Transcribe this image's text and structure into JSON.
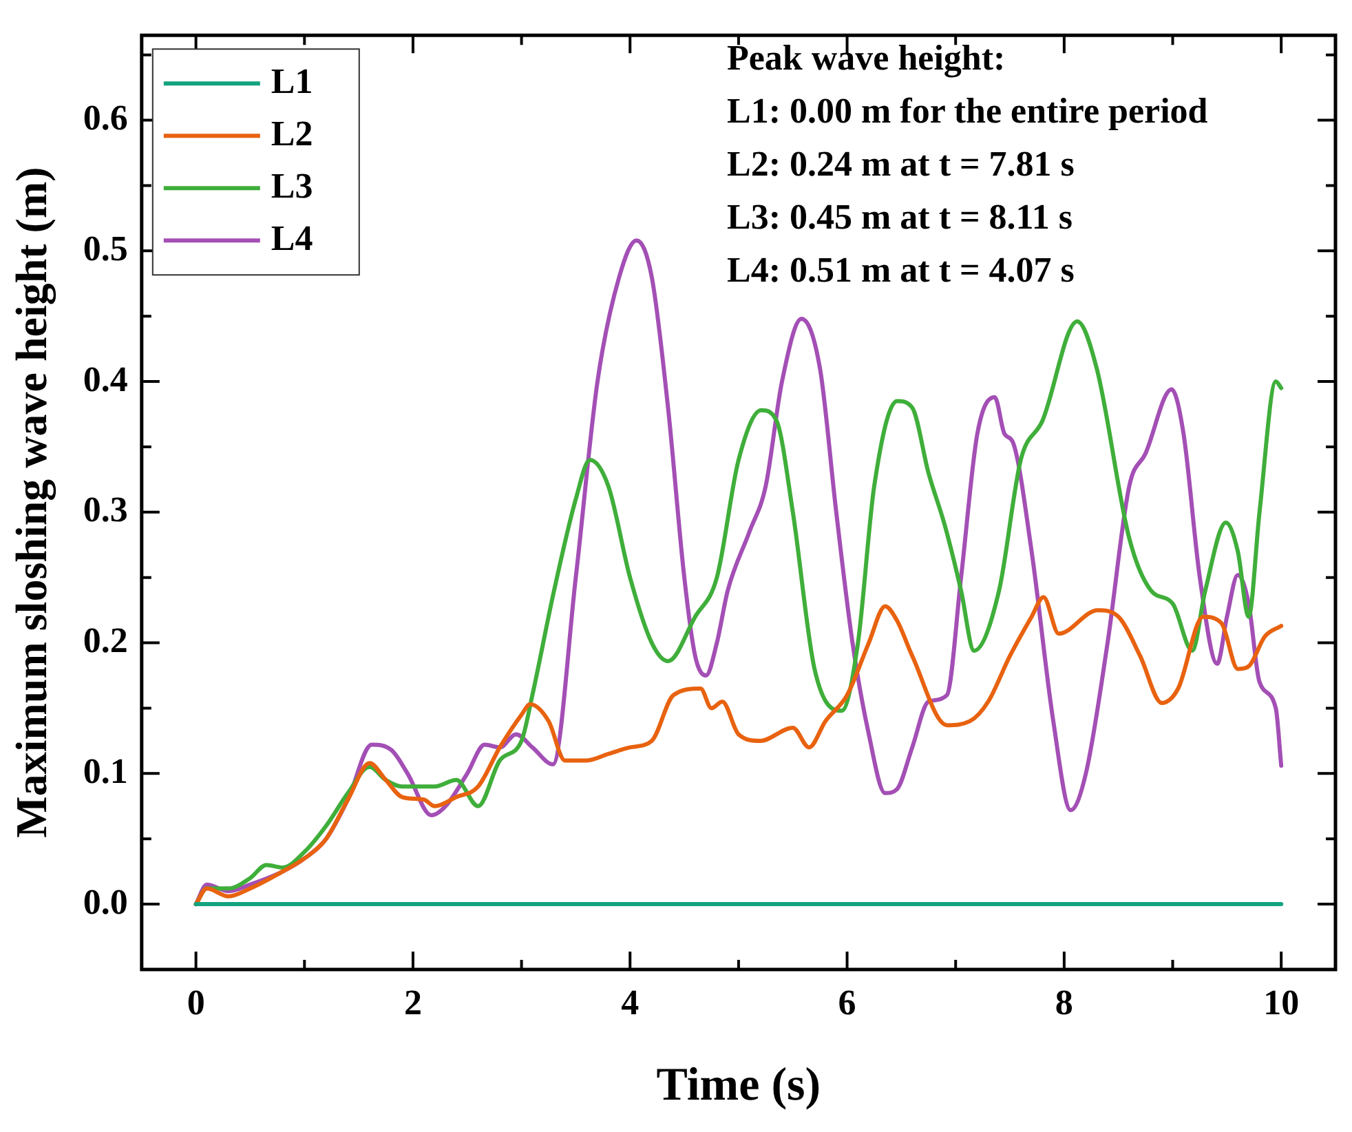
{
  "chart_data": {
    "type": "line",
    "xlabel": "Time (s)",
    "ylabel": "Maximum sloshing wave height (m)",
    "xlim": [
      -0.5,
      10.5
    ],
    "ylim": [
      -0.05,
      0.665
    ],
    "xticks": [
      0,
      {
        "value": 1,
        "label": null
      },
      2,
      {
        "value": 3,
        "label": null
      },
      4,
      {
        "value": 5,
        "label": null
      },
      6,
      {
        "value": 7,
        "label": null
      },
      8,
      {
        "value": 9,
        "label": null
      },
      10
    ],
    "yticks": [
      {
        "value": 0,
        "label": "0.0"
      },
      {
        "value": 0.05,
        "label": null
      },
      {
        "value": 0.1,
        "label": "0.1"
      },
      {
        "value": 0.15,
        "label": null
      },
      {
        "value": 0.2,
        "label": "0.2"
      },
      {
        "value": 0.25,
        "label": null
      },
      {
        "value": 0.3,
        "label": "0.3"
      },
      {
        "value": 0.35,
        "label": null
      },
      {
        "value": 0.4,
        "label": "0.4"
      },
      {
        "value": 0.45,
        "label": null
      },
      {
        "value": 0.5,
        "label": "0.5"
      },
      {
        "value": 0.55,
        "label": null
      },
      {
        "value": 0.6,
        "label": "0.6"
      },
      {
        "value": 0.65,
        "label": null
      }
    ],
    "grid": false,
    "legend": "top left",
    "marker": "none",
    "line_style": "solid",
    "annotations": [
      "Peak wave height:",
      "L1: 0.00 m for the entire period",
      "L2: 0.24 m at t = 7.81 s",
      "L3: 0.45 m at t = 8.11 s",
      "L4: 0.51 m at t = 4.07 s"
    ],
    "series": [
      {
        "name": "L1",
        "color": "#14a37f",
        "x": [
          0,
          10
        ],
        "values": [
          0,
          0
        ]
      },
      {
        "name": "L2",
        "color": "#e8620f",
        "x": [
          0,
          0.1,
          0.3,
          0.5,
          0.8,
          1.0,
          1.2,
          1.4,
          1.6,
          1.75,
          1.9,
          2.1,
          2.2,
          2.4,
          2.6,
          2.8,
          3.0,
          3.08,
          3.25,
          3.4,
          3.6,
          3.8,
          4.0,
          4.2,
          4.4,
          4.65,
          4.75,
          4.85,
          5.0,
          5.2,
          5.5,
          5.65,
          5.8,
          6.0,
          6.2,
          6.35,
          6.46,
          6.6,
          6.92,
          7.13,
          7.3,
          7.5,
          7.7,
          7.81,
          7.95,
          8.31,
          8.5,
          8.7,
          8.9,
          9.05,
          9.28,
          9.45,
          9.6,
          9.7,
          9.85,
          10.0
        ],
        "values": [
          0,
          0.012,
          0.006,
          0.012,
          0.025,
          0.035,
          0.05,
          0.08,
          0.108,
          0.095,
          0.082,
          0.08,
          0.075,
          0.082,
          0.09,
          0.12,
          0.145,
          0.153,
          0.14,
          0.11,
          0.11,
          0.115,
          0.12,
          0.125,
          0.16,
          0.165,
          0.15,
          0.155,
          0.13,
          0.125,
          0.135,
          0.12,
          0.14,
          0.16,
          0.2,
          0.228,
          0.217,
          0.19,
          0.137,
          0.14,
          0.155,
          0.19,
          0.22,
          0.235,
          0.207,
          0.225,
          0.22,
          0.19,
          0.154,
          0.165,
          0.22,
          0.215,
          0.18,
          0.182,
          0.205,
          0.213
        ]
      },
      {
        "name": "L3",
        "color": "#3fae3a",
        "x": [
          0,
          0.1,
          0.3,
          0.5,
          0.65,
          0.8,
          1.0,
          1.2,
          1.4,
          1.6,
          1.75,
          1.9,
          2.2,
          2.4,
          2.6,
          2.8,
          3.0,
          3.1,
          3.3,
          3.5,
          3.63,
          3.8,
          4.0,
          4.2,
          4.35,
          4.6,
          4.8,
          5.0,
          5.21,
          5.35,
          5.5,
          5.7,
          5.95,
          6.1,
          6.25,
          6.46,
          6.6,
          6.75,
          6.9,
          7.05,
          7.17,
          7.4,
          7.6,
          7.8,
          8.12,
          8.3,
          8.6,
          8.8,
          9.0,
          9.18,
          9.3,
          9.49,
          9.6,
          9.7,
          9.8,
          9.95,
          10.0
        ],
        "values": [
          0,
          0.012,
          0.012,
          0.02,
          0.03,
          0.028,
          0.04,
          0.06,
          0.085,
          0.105,
          0.095,
          0.09,
          0.09,
          0.095,
          0.075,
          0.11,
          0.125,
          0.16,
          0.24,
          0.31,
          0.34,
          0.32,
          0.25,
          0.2,
          0.186,
          0.22,
          0.25,
          0.34,
          0.378,
          0.37,
          0.3,
          0.18,
          0.148,
          0.2,
          0.32,
          0.385,
          0.38,
          0.33,
          0.29,
          0.24,
          0.194,
          0.24,
          0.34,
          0.37,
          0.446,
          0.41,
          0.28,
          0.24,
          0.23,
          0.194,
          0.24,
          0.292,
          0.27,
          0.22,
          0.3,
          0.4,
          0.395
        ]
      },
      {
        "name": "L4",
        "color": "#a34fb5",
        "x": [
          0,
          0.1,
          0.3,
          0.5,
          0.8,
          1.0,
          1.2,
          1.4,
          1.62,
          1.8,
          1.95,
          2.17,
          2.3,
          2.5,
          2.66,
          2.8,
          2.95,
          3.1,
          3.29,
          3.5,
          3.7,
          3.9,
          4.06,
          4.2,
          4.35,
          4.5,
          4.6,
          4.7,
          4.8,
          4.9,
          5.1,
          5.25,
          5.4,
          5.58,
          5.75,
          5.9,
          6.05,
          6.2,
          6.35,
          6.46,
          6.6,
          6.75,
          6.92,
          7.05,
          7.2,
          7.36,
          7.45,
          7.53,
          7.7,
          7.9,
          8.06,
          8.2,
          8.4,
          8.6,
          8.75,
          8.99,
          9.1,
          9.25,
          9.41,
          9.5,
          9.6,
          9.7,
          9.8,
          9.95,
          10.0
        ],
        "values": [
          0,
          0.015,
          0.01,
          0.015,
          0.025,
          0.035,
          0.05,
          0.08,
          0.122,
          0.118,
          0.1,
          0.068,
          0.075,
          0.1,
          0.122,
          0.12,
          0.13,
          0.12,
          0.107,
          0.25,
          0.4,
          0.48,
          0.508,
          0.48,
          0.38,
          0.25,
          0.19,
          0.175,
          0.2,
          0.24,
          0.285,
          0.32,
          0.4,
          0.448,
          0.41,
          0.3,
          0.2,
          0.13,
          0.085,
          0.088,
          0.12,
          0.155,
          0.16,
          0.25,
          0.36,
          0.388,
          0.36,
          0.353,
          0.27,
          0.14,
          0.072,
          0.1,
          0.2,
          0.32,
          0.345,
          0.394,
          0.36,
          0.25,
          0.184,
          0.22,
          0.252,
          0.23,
          0.17,
          0.15,
          0.106
        ]
      }
    ]
  }
}
